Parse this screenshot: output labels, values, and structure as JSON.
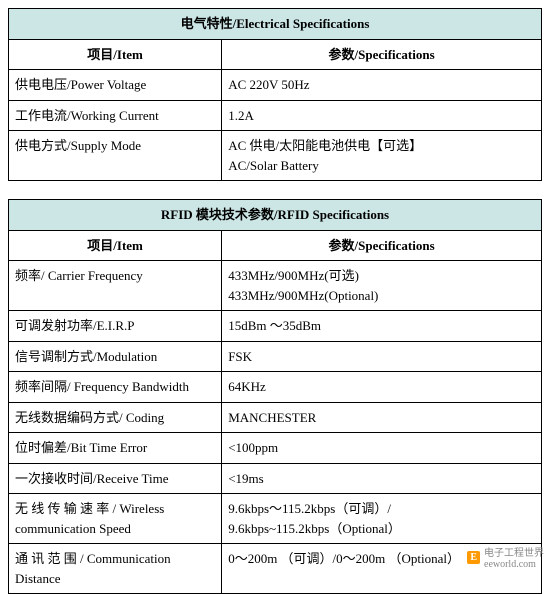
{
  "electrical": {
    "title": "电气特性/Electrical Specifications",
    "header_item": "项目/Item",
    "header_spec": "参数/Specifications",
    "rows": [
      {
        "item": "供电电压/Power Voltage",
        "spec": "AC 220V 50Hz"
      },
      {
        "item": "工作电流/Working Current",
        "spec": "1.2A"
      },
      {
        "item": "供电方式/Supply Mode",
        "spec": "AC 供电/太阳能电池供电【可选】\nAC/Solar Battery"
      }
    ]
  },
  "rfid": {
    "title": "RFID 模块技术参数/RFID Specifications",
    "header_item": "项目/Item",
    "header_spec": "参数/Specifications",
    "rows": [
      {
        "item": "频率/ Carrier Frequency",
        "spec": "433MHz/900MHz(可选)\n433MHz/900MHz(Optional)"
      },
      {
        "item": "可调发射功率/E.I.R.P",
        "spec": "15dBm ～35dBm"
      },
      {
        "item": "信号调制方式/Modulation",
        "spec": "FSK"
      },
      {
        "item": "频率间隔/ Frequency Bandwidth",
        "spec": "64KHz"
      },
      {
        "item": "无线数据编码方式/ Coding",
        "spec": "MANCHESTER"
      },
      {
        "item": "位时偏差/Bit Time Error",
        "spec": "<100ppm"
      },
      {
        "item": "一次接收时间/Receive Time",
        "spec": "<19ms"
      },
      {
        "item": "无 线 传 输 速 率 / Wireless communication Speed",
        "spec": "9.6kbps～115.2kbps（可调）/\n9.6kbps~115.2kbps（Optional）"
      },
      {
        "item": "通 讯 范 围 / Communication Distance",
        "spec": "0～200m （可调）/0～200m （Optional）"
      }
    ]
  },
  "footer": {
    "logo": "E",
    "text1": "电子工程世界",
    "text2": "eeworld.com"
  },
  "colors": {
    "title_bg": "#cce6e6",
    "border": "#000000",
    "background": "#ffffff"
  }
}
